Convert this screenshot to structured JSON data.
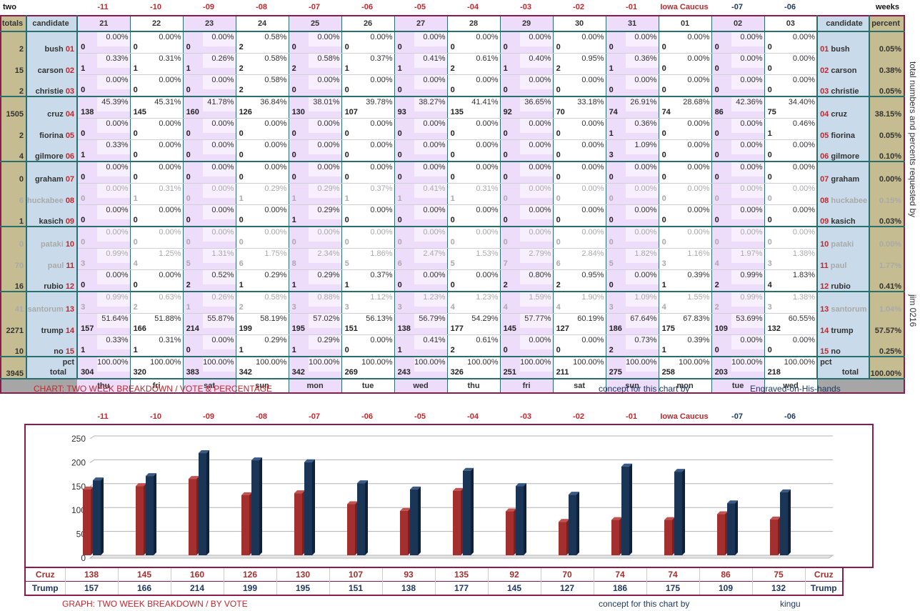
{
  "top_left_label": "two",
  "top_right_label": "weeks",
  "day_offsets": [
    "-11",
    "-10",
    "-09",
    "-08",
    "-07",
    "-06",
    "-05",
    "-04",
    "-03",
    "-02",
    "-01",
    "Iowa Caucus",
    "-07",
    "-06"
  ],
  "header": {
    "totals": "totals",
    "candidate": "candidate",
    "candidate_right": "candidate",
    "percent": "percent",
    "dates": [
      "21",
      "22",
      "23",
      "24",
      "25",
      "26",
      "27",
      "28",
      "29",
      "30",
      "31",
      "01",
      "02",
      "03"
    ]
  },
  "candidates": [
    {
      "no": "01",
      "name": "bush",
      "total": "2",
      "pct": "0.05%",
      "muted": false,
      "votes": [
        "0",
        "0",
        "0",
        "2",
        "0",
        "0",
        "0",
        "0",
        "0",
        "0",
        "0",
        "0",
        "0",
        "0"
      ],
      "pcts": [
        "0.00%",
        "0.00%",
        "0.00%",
        "0.58%",
        "0.00%",
        "0.00%",
        "0.00%",
        "0.00%",
        "0.00%",
        "0.00%",
        "0.00%",
        "0.00%",
        "0.00%",
        "0.00%"
      ]
    },
    {
      "no": "02",
      "name": "carson",
      "total": "15",
      "pct": "0.38%",
      "muted": false,
      "votes": [
        "1",
        "1",
        "1",
        "2",
        "2",
        "1",
        "1",
        "2",
        "1",
        "2",
        "1",
        "0",
        "0",
        "0"
      ],
      "pcts": [
        "0.33%",
        "0.31%",
        "0.26%",
        "0.58%",
        "0.58%",
        "0.37%",
        "0.41%",
        "0.61%",
        "0.40%",
        "0.95%",
        "0.36%",
        "0.00%",
        "0.00%",
        "0.00%"
      ]
    },
    {
      "no": "03",
      "name": "christie",
      "total": "2",
      "pct": "0.05%",
      "muted": false,
      "votes": [
        "0",
        "0",
        "0",
        "2",
        "0",
        "0",
        "0",
        "0",
        "0",
        "0",
        "0",
        "0",
        "0",
        "0"
      ],
      "pcts": [
        "0.00%",
        "0.00%",
        "0.00%",
        "0.58%",
        "0.00%",
        "0.00%",
        "0.00%",
        "0.00%",
        "0.00%",
        "0.00%",
        "0.00%",
        "0.00%",
        "0.00%",
        "0.00%"
      ]
    },
    {
      "no": "04",
      "name": "cruz",
      "total": "1505",
      "pct": "38.15%",
      "muted": false,
      "votes": [
        "138",
        "145",
        "160",
        "126",
        "130",
        "107",
        "93",
        "135",
        "92",
        "70",
        "74",
        "74",
        "86",
        "75"
      ],
      "pcts": [
        "45.39%",
        "45.31%",
        "41.78%",
        "36.84%",
        "38.01%",
        "39.78%",
        "38.27%",
        "41.41%",
        "36.65%",
        "33.18%",
        "26.91%",
        "28.68%",
        "42.36%",
        "34.40%"
      ]
    },
    {
      "no": "05",
      "name": "fiorina",
      "total": "2",
      "pct": "0.05%",
      "muted": false,
      "votes": [
        "0",
        "0",
        "0",
        "0",
        "0",
        "0",
        "0",
        "0",
        "0",
        "0",
        "1",
        "0",
        "0",
        "1"
      ],
      "pcts": [
        "0.00%",
        "0.00%",
        "0.00%",
        "0.00%",
        "0.00%",
        "0.00%",
        "0.00%",
        "0.00%",
        "0.00%",
        "0.00%",
        "0.36%",
        "0.00%",
        "0.00%",
        "0.46%"
      ]
    },
    {
      "no": "06",
      "name": "gilmore",
      "total": "4",
      "pct": "0.10%",
      "muted": false,
      "votes": [
        "1",
        "0",
        "0",
        "0",
        "0",
        "0",
        "0",
        "0",
        "0",
        "0",
        "3",
        "0",
        "0",
        "0"
      ],
      "pcts": [
        "0.33%",
        "0.00%",
        "0.00%",
        "0.00%",
        "0.00%",
        "0.00%",
        "0.00%",
        "0.00%",
        "0.00%",
        "0.00%",
        "1.09%",
        "0.00%",
        "0.00%",
        "0.00%"
      ]
    },
    {
      "no": "07",
      "name": "graham",
      "total": "0",
      "pct": "0.00%",
      "muted": false,
      "votes": [
        "0",
        "0",
        "0",
        "0",
        "0",
        "0",
        "0",
        "0",
        "0",
        "0",
        "0",
        "0",
        "0",
        "0"
      ],
      "pcts": [
        "0.00%",
        "0.00%",
        "0.00%",
        "0.00%",
        "0.00%",
        "0.00%",
        "0.00%",
        "0.00%",
        "0.00%",
        "0.00%",
        "0.00%",
        "0.00%",
        "0.00%",
        "0.00%"
      ]
    },
    {
      "no": "08",
      "name": "huckabee",
      "total": "6",
      "pct": "0.15%",
      "muted": true,
      "votes": [
        "0",
        "1",
        "0",
        "1",
        "1",
        "1",
        "1",
        "1",
        "0",
        "0",
        "0",
        "0",
        "0",
        "0"
      ],
      "pcts": [
        "0.00%",
        "0.31%",
        "0.00%",
        "0.29%",
        "0.29%",
        "0.37%",
        "0.41%",
        "0.31%",
        "0.00%",
        "0.00%",
        "0.00%",
        "0.00%",
        "0.00%",
        "0.00%"
      ]
    },
    {
      "no": "09",
      "name": "kasich",
      "total": "1",
      "pct": "0.03%",
      "muted": false,
      "votes": [
        "0",
        "0",
        "0",
        "0",
        "1",
        "0",
        "0",
        "0",
        "0",
        "0",
        "0",
        "0",
        "0",
        "0"
      ],
      "pcts": [
        "0.00%",
        "0.00%",
        "0.00%",
        "0.00%",
        "0.29%",
        "0.00%",
        "0.00%",
        "0.00%",
        "0.00%",
        "0.00%",
        "0.00%",
        "0.00%",
        "0.00%",
        "0.00%"
      ]
    },
    {
      "no": "10",
      "name": "pataki",
      "total": "0",
      "pct": "0.00%",
      "muted": true,
      "votes": [
        "0",
        "0",
        "0",
        "0",
        "0",
        "0",
        "0",
        "0",
        "0",
        "0",
        "0",
        "0",
        "0",
        "0"
      ],
      "pcts": [
        "0.00%",
        "0.00%",
        "0.00%",
        "0.00%",
        "0.00%",
        "0.00%",
        "0.00%",
        "0.00%",
        "0.00%",
        "0.00%",
        "0.00%",
        "0.00%",
        "0.00%",
        "0.00%"
      ]
    },
    {
      "no": "11",
      "name": "paul",
      "total": "70",
      "pct": "1.77%",
      "muted": true,
      "votes": [
        "3",
        "4",
        "5",
        "6",
        "8",
        "5",
        "6",
        "5",
        "7",
        "6",
        "5",
        "3",
        "4",
        "3"
      ],
      "pcts": [
        "0.99%",
        "1.25%",
        "1.31%",
        "1.75%",
        "2.34%",
        "1.86%",
        "2.47%",
        "1.53%",
        "2.79%",
        "2.84%",
        "1.82%",
        "1.16%",
        "1.97%",
        "1.38%"
      ]
    },
    {
      "no": "12",
      "name": "rubio",
      "total": "16",
      "pct": "0.41%",
      "muted": false,
      "votes": [
        "0",
        "0",
        "2",
        "1",
        "1",
        "1",
        "0",
        "0",
        "2",
        "2",
        "0",
        "1",
        "2",
        "4"
      ],
      "pcts": [
        "0.00%",
        "0.00%",
        "0.52%",
        "0.29%",
        "0.29%",
        "0.37%",
        "0.00%",
        "0.00%",
        "0.80%",
        "0.95%",
        "0.00%",
        "0.39%",
        "0.99%",
        "1.83%"
      ]
    },
    {
      "no": "13",
      "name": "santorum",
      "total": "41",
      "pct": "1.04%",
      "muted": true,
      "votes": [
        "3",
        "2",
        "1",
        "2",
        "3",
        "3",
        "3",
        "4",
        "4",
        "4",
        "3",
        "4",
        "2",
        "3"
      ],
      "pcts": [
        "0.99%",
        "0.63%",
        "0.26%",
        "0.58%",
        "0.88%",
        "1.12%",
        "1.23%",
        "1.23%",
        "1.59%",
        "1.90%",
        "1.09%",
        "1.55%",
        "0.99%",
        "1.38%"
      ]
    },
    {
      "no": "14",
      "name": "trump",
      "total": "2271",
      "pct": "57.57%",
      "muted": false,
      "votes": [
        "157",
        "166",
        "214",
        "199",
        "195",
        "151",
        "138",
        "177",
        "145",
        "127",
        "186",
        "175",
        "109",
        "132"
      ],
      "pcts": [
        "51.64%",
        "51.88%",
        "55.87%",
        "58.19%",
        "57.02%",
        "56.13%",
        "56.79%",
        "54.29%",
        "57.77%",
        "60.19%",
        "67.64%",
        "67.83%",
        "53.69%",
        "60.55%"
      ]
    },
    {
      "no": "15",
      "name": "no",
      "total": "10",
      "pct": "0.25%",
      "muted": false,
      "votes": [
        "1",
        "1",
        "0",
        "1",
        "1",
        "0",
        "1",
        "2",
        "0",
        "0",
        "2",
        "1",
        "0",
        "0"
      ],
      "pcts": [
        "0.33%",
        "0.31%",
        "0.00%",
        "0.29%",
        "0.29%",
        "0.00%",
        "0.41%",
        "0.61%",
        "0.00%",
        "0.00%",
        "0.73%",
        "0.39%",
        "0.00%",
        "0.00%"
      ]
    }
  ],
  "totals_row": {
    "grand_total": "3945",
    "pct_label": "pct",
    "total_label": "total",
    "right_pct_label": "pct",
    "right_total_label": "total",
    "right_percent": "100.00%",
    "votes": [
      "304",
      "320",
      "383",
      "342",
      "342",
      "269",
      "243",
      "326",
      "251",
      "211",
      "275",
      "258",
      "203",
      "218"
    ],
    "pcts": [
      "100.00%",
      "100.00%",
      "100.00%",
      "100.00%",
      "100.00%",
      "100.00%",
      "100.00%",
      "100.00%",
      "100.00%",
      "100.00%",
      "100.00%",
      "100.00%",
      "100.00%",
      "100.00%"
    ]
  },
  "weekdays": [
    "thu",
    "fri",
    "sat",
    "sun",
    "mon",
    "tue",
    "wed",
    "thu",
    "fri",
    "sat",
    "sun",
    "mon",
    "tue",
    "wed"
  ],
  "side_text_1": "total numbers and percents requested by",
  "side_text_2": "jim 0216",
  "caption1": {
    "left": "CHART: TWO WEEK BREAKDOWN / VOTE & PERCENTAGE",
    "mid": "concept for this chart by",
    "right": "Engraved-on-His-hands"
  },
  "caption2": {
    "left": "GRAPH: TWO WEEK BREAKDOWN / BY VOTE",
    "mid": "concept for this chart by",
    "right": "kingu"
  },
  "colors": {
    "cruz": "#a3302e",
    "trump": "#1b3557",
    "red_text": "#c0282d",
    "navy_text": "#1f3864"
  },
  "chart_data": {
    "type": "bar",
    "categories": [
      "-11",
      "-10",
      "-09",
      "-08",
      "-07",
      "-06",
      "-05",
      "-04",
      "-03",
      "-02",
      "-01",
      "Iowa Caucus",
      "-07",
      "-06"
    ],
    "series": [
      {
        "name": "Cruz",
        "values": [
          138,
          145,
          160,
          126,
          130,
          107,
          93,
          135,
          92,
          70,
          74,
          74,
          86,
          75
        ]
      },
      {
        "name": "Trump",
        "values": [
          157,
          166,
          214,
          199,
          195,
          151,
          138,
          177,
          145,
          127,
          186,
          175,
          109,
          132
        ]
      }
    ],
    "ylim": [
      0,
      250
    ],
    "yticks": [
      "0",
      "50",
      "100",
      "150",
      "200",
      "250"
    ],
    "grid": true,
    "style": "3d"
  }
}
